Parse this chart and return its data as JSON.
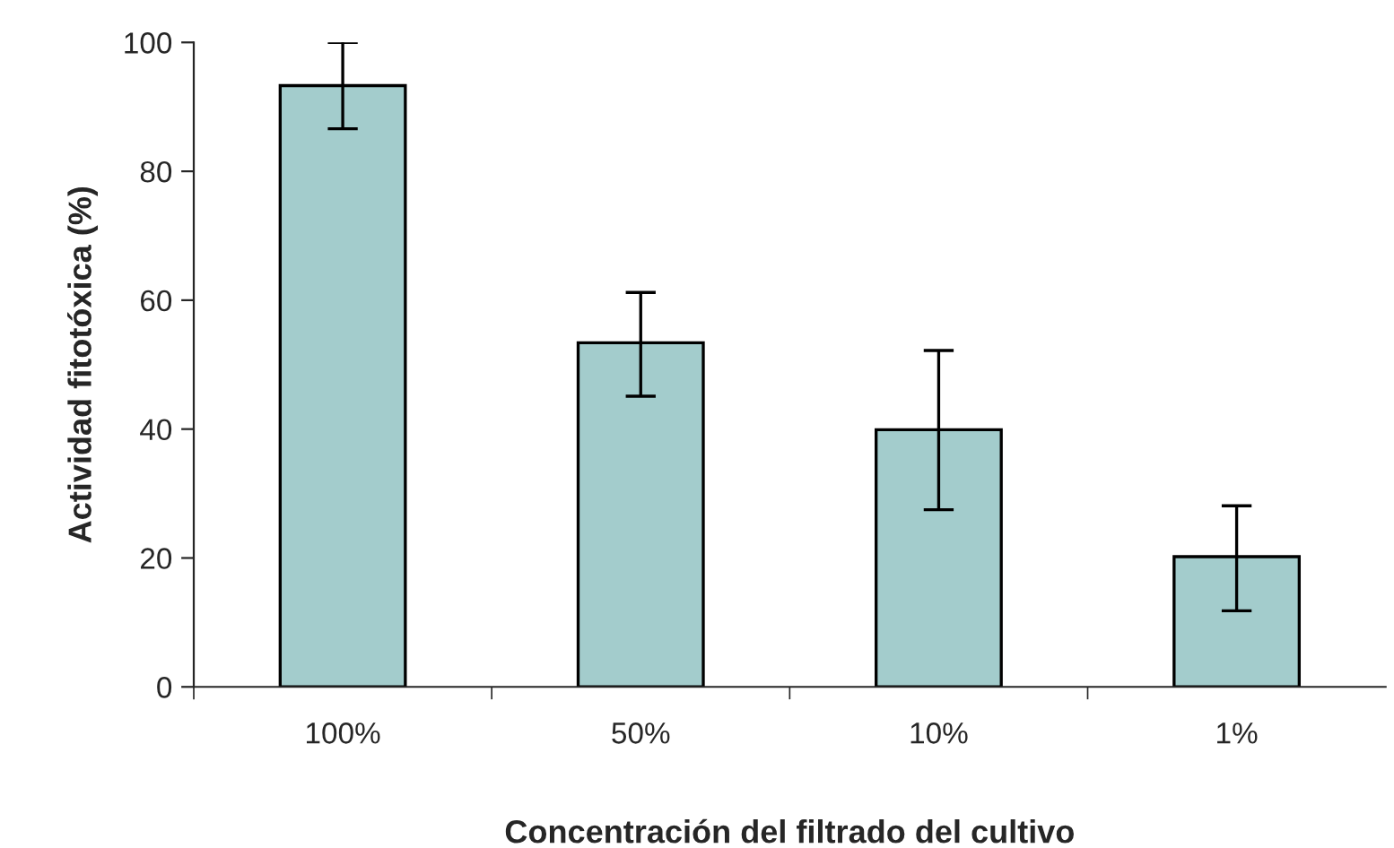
{
  "chart_data": {
    "type": "bar",
    "xlabel": "Concentración del filtrado del cultivo",
    "ylabel": "Actividad fitotóxica (%)",
    "categories": [
      "100%",
      "50%",
      "10%",
      "1%"
    ],
    "values": [
      93.3,
      53.4,
      39.9,
      20.2
    ],
    "errors": [
      [
        86.6,
        100
      ],
      [
        45.1,
        61.2
      ],
      [
        27.5,
        52.2
      ],
      [
        11.8,
        28.1
      ]
    ],
    "color": "#a3cccc",
    "ylim": [
      0,
      100
    ],
    "yticks": [
      0,
      20,
      40,
      60,
      80,
      100
    ],
    "grid": false
  }
}
